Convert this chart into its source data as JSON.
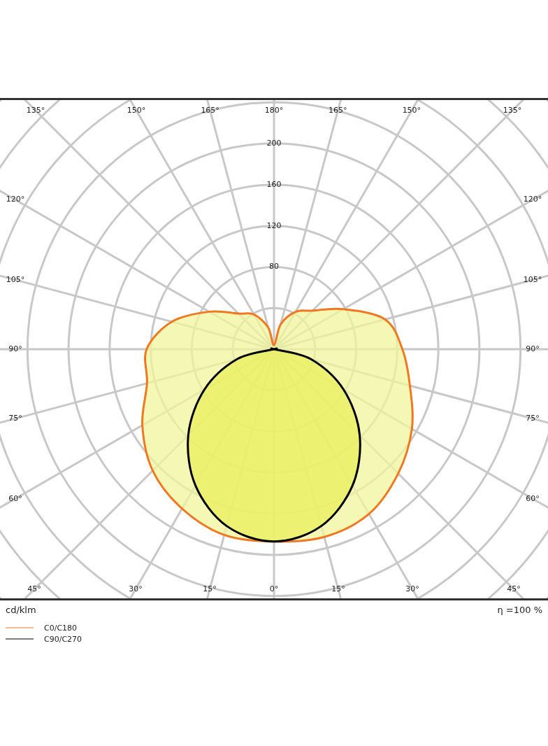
{
  "chart_data": {
    "type": "radar",
    "categories": [
      "180°",
      "165°",
      "150°",
      "135°",
      "120°",
      "105°",
      "90°",
      "75°",
      "60°",
      "45°",
      "30°",
      "15°",
      "0°",
      "15°",
      "30°",
      "45°",
      "60°",
      "75°",
      "90°",
      "105°",
      "120°",
      "135°",
      "150°",
      "165°"
    ],
    "series": [
      {
        "name": "C0/C180",
        "color": "#f07820",
        "values": [
          4,
          25,
          42,
          53,
          78,
          112,
          125,
          137,
          155,
          171,
          185,
          189,
          187,
          187,
          179,
          167,
          148,
          128,
          124,
          103,
          73,
          49,
          39,
          22
        ]
      },
      {
        "name": "C90/C270",
        "color": "#000000",
        "values": [
          0,
          0,
          0,
          0,
          0,
          0,
          0,
          37,
          78,
          118,
          153,
          178,
          187,
          178,
          153,
          118,
          78,
          37,
          0,
          0,
          0,
          0,
          0,
          0
        ]
      }
    ],
    "ylim": [
      0,
      360
    ],
    "yticks": [
      80,
      120,
      160,
      200
    ],
    "grid": true,
    "legend": "bottom left",
    "annotations": [
      "cd/klm",
      "η =100 %"
    ]
  }
}
